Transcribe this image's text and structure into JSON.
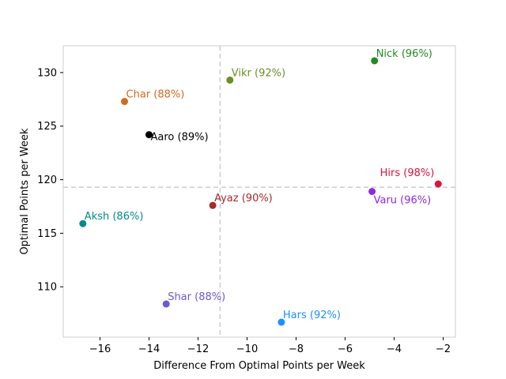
{
  "chart_data": {
    "type": "scatter",
    "xlabel": "Difference From Optimal Points per Week",
    "ylabel": "Optimal Points per Week",
    "xlim": [
      -17.5,
      -1.5
    ],
    "ylim": [
      105.3,
      132.5
    ],
    "xticks": [
      -16,
      -14,
      -12,
      -10,
      -8,
      -6,
      -4,
      -2
    ],
    "xtick_labels": [
      "−16",
      "−14",
      "−12",
      "−10",
      "−8",
      "−6",
      "−4",
      "−2"
    ],
    "yticks": [
      110,
      115,
      120,
      125,
      130
    ],
    "ytick_labels": [
      "110",
      "115",
      "120",
      "125",
      "130"
    ],
    "reference_lines": {
      "x": -11.1,
      "y": 119.3,
      "style": "dashed",
      "color": "#cccccc"
    },
    "grid": false,
    "points": [
      {
        "label": "Nick (96%)",
        "x": -4.8,
        "y": 131.1,
        "color": "#228b22",
        "label_pos": "above-right"
      },
      {
        "label": "Vikr (92%)",
        "x": -10.7,
        "y": 129.3,
        "color": "#6b8e23",
        "label_pos": "above-right"
      },
      {
        "label": "Char (88%)",
        "x": -15.0,
        "y": 127.3,
        "color": "#d2691e",
        "label_pos": "above-right"
      },
      {
        "label": "Aaro (89%)",
        "x": -14.0,
        "y": 124.2,
        "color": "#000000",
        "label_pos": "right"
      },
      {
        "label": "Hirs (98%)",
        "x": -2.2,
        "y": 119.6,
        "color": "#dc143c",
        "label_pos": "above-left"
      },
      {
        "label": "Varu (96%)",
        "x": -4.9,
        "y": 118.9,
        "color": "#8a2be2",
        "label_pos": "below-right"
      },
      {
        "label": "Ayaz (90%)",
        "x": -11.4,
        "y": 117.6,
        "color": "#a52a2a",
        "label_pos": "above-right"
      },
      {
        "label": "Aksh (86%)",
        "x": -16.7,
        "y": 115.9,
        "color": "#008b8b",
        "label_pos": "above-right"
      },
      {
        "label": "Shar (88%)",
        "x": -13.3,
        "y": 108.4,
        "color": "#6a5acd",
        "label_pos": "above-right"
      },
      {
        "label": "Hars (92%)",
        "x": -8.6,
        "y": 106.7,
        "color": "#1e90ff",
        "label_pos": "above-right"
      }
    ]
  }
}
